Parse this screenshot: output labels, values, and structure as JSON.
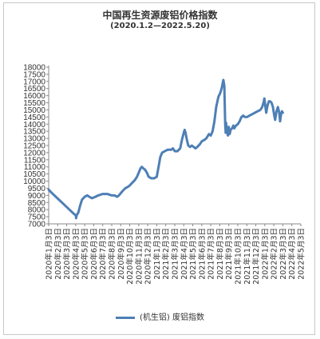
{
  "chart_data": {
    "type": "line",
    "title": "中国再生资源废铝价格指数",
    "subtitle": "(2020.1.2—2022.5.20)",
    "xlabel": "",
    "ylabel": "",
    "ylim": [
      7000,
      18000
    ],
    "yticks": [
      7000,
      7500,
      8000,
      8500,
      9000,
      9500,
      10000,
      10500,
      11000,
      11500,
      12000,
      12500,
      13000,
      13500,
      14000,
      14500,
      15000,
      15500,
      16000,
      16500,
      17000,
      17500,
      18000
    ],
    "xticks": [
      "2020年1月3日",
      "2020年2月3日",
      "2020年3月3日",
      "2020年4月3日",
      "2020年5月3日",
      "2020年6月3日",
      "2020年7月3日",
      "2020年8月3日",
      "2020年9月3日",
      "2020年10月3日",
      "2020年11月3日",
      "2020年12月3日",
      "2021年1月3日",
      "2021年2月3日",
      "2021年3月3日",
      "2021年4月3日",
      "2021年5月3日",
      "2021年6月3日",
      "2021年7月3日",
      "2021年8月3日",
      "2021年9月3日",
      "2021年10月3日",
      "2021年11月3日",
      "2021年12月3日",
      "2022年1月3日",
      "2022年2月3日",
      "2022年3月3日",
      "2022年4月3日",
      "2022年5月3日"
    ],
    "grid": false,
    "legend_position": "bottom",
    "series": [
      {
        "name": "(机生铝) 废铝指数",
        "color": "#4e7fb5",
        "points": [
          [
            0.0,
            9400
          ],
          [
            0.3,
            9200
          ],
          [
            0.8,
            8900
          ],
          [
            1.3,
            8600
          ],
          [
            1.8,
            8300
          ],
          [
            2.3,
            8000
          ],
          [
            2.8,
            7700
          ],
          [
            3.0,
            7600
          ],
          [
            3.05,
            7400
          ],
          [
            3.1,
            7600
          ],
          [
            3.3,
            7800
          ],
          [
            3.5,
            8300
          ],
          [
            3.7,
            8700
          ],
          [
            4.0,
            8900
          ],
          [
            4.3,
            9000
          ],
          [
            4.5,
            8900
          ],
          [
            4.8,
            8800
          ],
          [
            5.2,
            8900
          ],
          [
            5.5,
            9000
          ],
          [
            6.0,
            9100
          ],
          [
            6.5,
            9100
          ],
          [
            7.0,
            9000
          ],
          [
            7.3,
            9000
          ],
          [
            7.6,
            8900
          ],
          [
            7.8,
            9000
          ],
          [
            8.2,
            9300
          ],
          [
            8.5,
            9500
          ],
          [
            8.8,
            9600
          ],
          [
            9.0,
            9700
          ],
          [
            9.3,
            9900
          ],
          [
            9.6,
            10100
          ],
          [
            9.8,
            10300
          ],
          [
            10.0,
            10600
          ],
          [
            10.2,
            10900
          ],
          [
            10.35,
            11000
          ],
          [
            10.5,
            10900
          ],
          [
            10.7,
            10800
          ],
          [
            10.9,
            10600
          ],
          [
            11.1,
            10300
          ],
          [
            11.4,
            10200
          ],
          [
            11.7,
            10200
          ],
          [
            12.0,
            10300
          ],
          [
            12.2,
            11000
          ],
          [
            12.4,
            11700
          ],
          [
            12.6,
            12000
          ],
          [
            12.9,
            12100
          ],
          [
            13.2,
            12200
          ],
          [
            13.6,
            12200
          ],
          [
            13.8,
            12300
          ],
          [
            14.0,
            12100
          ],
          [
            14.3,
            12100
          ],
          [
            14.6,
            12300
          ],
          [
            14.8,
            12900
          ],
          [
            15.0,
            13400
          ],
          [
            15.1,
            13600
          ],
          [
            15.2,
            13400
          ],
          [
            15.35,
            12900
          ],
          [
            15.5,
            12500
          ],
          [
            15.7,
            12400
          ],
          [
            15.9,
            12500
          ],
          [
            16.1,
            12400
          ],
          [
            16.3,
            12300
          ],
          [
            16.5,
            12400
          ],
          [
            16.8,
            12600
          ],
          [
            17.0,
            12800
          ],
          [
            17.3,
            12900
          ],
          [
            17.5,
            13000
          ],
          [
            17.8,
            13300
          ],
          [
            18.0,
            13200
          ],
          [
            18.2,
            13500
          ],
          [
            18.4,
            14200
          ],
          [
            18.6,
            15200
          ],
          [
            18.8,
            15800
          ],
          [
            18.9,
            16000
          ],
          [
            19.0,
            16100
          ],
          [
            19.1,
            16300
          ],
          [
            19.2,
            16500
          ],
          [
            19.3,
            16800
          ],
          [
            19.4,
            17100
          ],
          [
            19.5,
            16700
          ],
          [
            19.6,
            14000
          ],
          [
            19.65,
            13400
          ],
          [
            19.7,
            14100
          ],
          [
            19.8,
            13500
          ],
          [
            19.9,
            13200
          ],
          [
            20.0,
            13800
          ],
          [
            20.1,
            13300
          ],
          [
            20.2,
            13600
          ],
          [
            20.35,
            13700
          ],
          [
            20.5,
            13900
          ],
          [
            20.6,
            13700
          ],
          [
            20.8,
            13900
          ],
          [
            21.0,
            14000
          ],
          [
            21.2,
            14200
          ],
          [
            21.4,
            14500
          ],
          [
            21.6,
            14600
          ],
          [
            21.8,
            14500
          ],
          [
            22.0,
            14500
          ],
          [
            22.3,
            14600
          ],
          [
            22.6,
            14700
          ],
          [
            22.9,
            14800
          ],
          [
            23.2,
            14900
          ],
          [
            23.5,
            15000
          ],
          [
            23.7,
            15200
          ],
          [
            23.85,
            15500
          ],
          [
            23.95,
            15800
          ],
          [
            24.05,
            15300
          ],
          [
            24.15,
            14800
          ],
          [
            24.3,
            15300
          ],
          [
            24.45,
            15600
          ],
          [
            24.6,
            15600
          ],
          [
            24.75,
            15500
          ],
          [
            24.9,
            15200
          ],
          [
            25.05,
            14600
          ],
          [
            25.15,
            14300
          ],
          [
            25.3,
            14900
          ],
          [
            25.45,
            15200
          ],
          [
            25.6,
            14800
          ],
          [
            25.7,
            14200
          ],
          [
            25.8,
            14700
          ],
          [
            25.9,
            14900
          ],
          [
            26.0,
            14800
          ]
        ]
      }
    ]
  },
  "legend": {
    "label": "(机生铝) 废铝指数"
  }
}
